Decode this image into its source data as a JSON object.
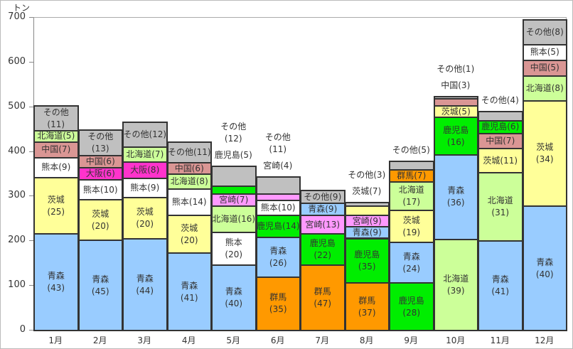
{
  "chart_data": {
    "type": "bar",
    "stacked": true,
    "ylabel": "トン",
    "ylim": [
      0,
      700
    ],
    "yticks": [
      0,
      100,
      200,
      300,
      400,
      500,
      600,
      700
    ],
    "categories": [
      "1月",
      "2月",
      "3月",
      "4月",
      "5月",
      "6月",
      "7月",
      "8月",
      "9月",
      "10月",
      "11月",
      "12月"
    ],
    "colors": {
      "青森": "#99ccff",
      "茨城": "#ffff99",
      "熊本": "#ffffff",
      "中国": "#da9694",
      "北海道": "#ccff99",
      "その他": "#c0c0c0",
      "大阪": "#ff33cc",
      "宮崎": "#ff99ff",
      "鹿児島": "#00ee00",
      "群馬": "#ff9900"
    },
    "bars": [
      [
        {
          "name": "青森",
          "pct": 43,
          "value": 216
        },
        {
          "name": "茨城",
          "pct": 25,
          "value": 126
        },
        {
          "name": "熊本",
          "pct": 9,
          "value": 45
        },
        {
          "name": "中国",
          "pct": 7,
          "value": 35
        },
        {
          "name": "北海道",
          "pct": 5,
          "value": 25
        },
        {
          "name": "その他",
          "pct": 11,
          "value": 55
        }
      ],
      [
        {
          "name": "青森",
          "pct": 45,
          "value": 202
        },
        {
          "name": "茨城",
          "pct": 20,
          "value": 90
        },
        {
          "name": "熊本",
          "pct": 10,
          "value": 45
        },
        {
          "name": "大阪",
          "pct": 6,
          "value": 27
        },
        {
          "name": "中国",
          "pct": 6,
          "value": 27
        },
        {
          "name": "その他",
          "pct": 13,
          "value": 58
        }
      ],
      [
        {
          "name": "青森",
          "pct": 44,
          "value": 205
        },
        {
          "name": "茨城",
          "pct": 20,
          "value": 93
        },
        {
          "name": "熊本",
          "pct": 9,
          "value": 42
        },
        {
          "name": "大阪",
          "pct": 8,
          "value": 37
        },
        {
          "name": "北海道",
          "pct": 7,
          "value": 33
        },
        {
          "name": "その他",
          "pct": 12,
          "value": 56
        }
      ],
      [
        {
          "name": "青森",
          "pct": 41,
          "value": 173
        },
        {
          "name": "茨城",
          "pct": 20,
          "value": 84
        },
        {
          "name": "熊本",
          "pct": 14,
          "value": 59
        },
        {
          "name": "北海道",
          "pct": 8,
          "value": 34
        },
        {
          "name": "中国",
          "pct": 6,
          "value": 25
        },
        {
          "name": "その他",
          "pct": 11,
          "value": 46
        }
      ],
      [
        {
          "name": "青森",
          "pct": 40,
          "value": 147
        },
        {
          "name": "熊本",
          "pct": 20,
          "value": 73
        },
        {
          "name": "北海道",
          "pct": 16,
          "value": 59
        },
        {
          "name": "宮崎",
          "pct": 7,
          "value": 26
        },
        {
          "name": "鹿児島",
          "pct": 5,
          "value": 18
        },
        {
          "name": "その他",
          "pct": 12,
          "value": 44
        }
      ],
      [
        {
          "name": "群馬",
          "pct": 35,
          "value": 120
        },
        {
          "name": "青森",
          "pct": 26,
          "value": 89
        },
        {
          "name": "鹿児島",
          "pct": 14,
          "value": 48
        },
        {
          "name": "熊本",
          "pct": 10,
          "value": 34
        },
        {
          "name": "宮崎",
          "pct": 4,
          "value": 14
        },
        {
          "name": "その他",
          "pct": 11,
          "value": 38
        }
      ],
      [
        {
          "name": "群馬",
          "pct": 47,
          "value": 147
        },
        {
          "name": "鹿児島",
          "pct": 22,
          "value": 69
        },
        {
          "name": "宮崎",
          "pct": 13,
          "value": 41
        },
        {
          "name": "青森",
          "pct": 9,
          "value": 28
        },
        {
          "name": "その他",
          "pct": 9,
          "value": 28
        }
      ],
      [
        {
          "name": "群馬",
          "pct": 37,
          "value": 106
        },
        {
          "name": "鹿児島",
          "pct": 35,
          "value": 100
        },
        {
          "name": "青森",
          "pct": 9,
          "value": 26
        },
        {
          "name": "宮崎",
          "pct": 9,
          "value": 26
        },
        {
          "name": "茨城",
          "pct": 7,
          "value": 20
        },
        {
          "name": "その他",
          "pct": 3,
          "value": 9
        }
      ],
      [
        {
          "name": "鹿児島",
          "pct": 28,
          "value": 106
        },
        {
          "name": "青森",
          "pct": 24,
          "value": 91
        },
        {
          "name": "茨城",
          "pct": 19,
          "value": 72
        },
        {
          "name": "北海道",
          "pct": 17,
          "value": 64
        },
        {
          "name": "群馬",
          "pct": 7,
          "value": 26
        },
        {
          "name": "その他",
          "pct": 5,
          "value": 19
        }
      ],
      [
        {
          "name": "北海道",
          "pct": 39,
          "value": 204
        },
        {
          "name": "青森",
          "pct": 36,
          "value": 189
        },
        {
          "name": "鹿児島",
          "pct": 16,
          "value": 84
        },
        {
          "name": "茨城",
          "pct": 5,
          "value": 26
        },
        {
          "name": "中国",
          "pct": 3,
          "value": 16
        },
        {
          "name": "その他",
          "pct": 1,
          "value": 5
        }
      ],
      [
        {
          "name": "青森",
          "pct": 41,
          "value": 201
        },
        {
          "name": "北海道",
          "pct": 31,
          "value": 152
        },
        {
          "name": "茨城",
          "pct": 11,
          "value": 54
        },
        {
          "name": "中国",
          "pct": 7,
          "value": 34
        },
        {
          "name": "鹿児島",
          "pct": 6,
          "value": 29
        },
        {
          "name": "その他",
          "pct": 4,
          "value": 20
        }
      ],
      [
        {
          "name": "青森",
          "pct": 40,
          "value": 278
        },
        {
          "name": "茨城",
          "pct": 34,
          "value": 236
        },
        {
          "name": "北海道",
          "pct": 8,
          "value": 56
        },
        {
          "name": "中国",
          "pct": 5,
          "value": 35
        },
        {
          "name": "熊本",
          "pct": 5,
          "value": 35
        },
        {
          "name": "その他",
          "pct": 8,
          "value": 56
        }
      ]
    ]
  }
}
